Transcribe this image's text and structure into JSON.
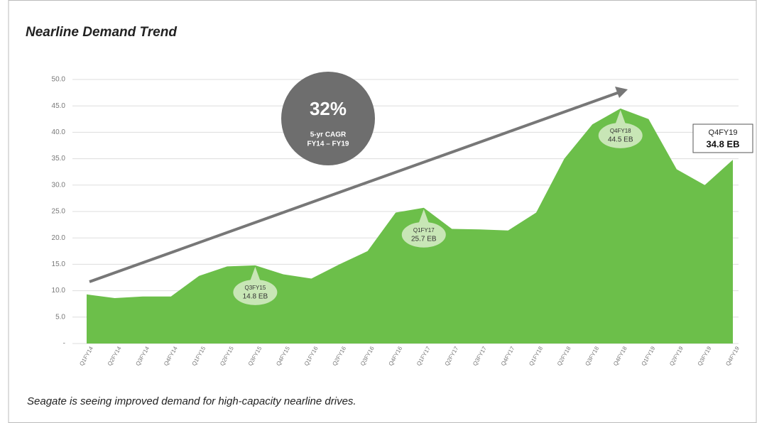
{
  "chart_data": {
    "type": "area",
    "title": "Nearline Demand Trend",
    "footnote": "Seagate is seeing improved demand for high-capacity nearline drives.",
    "categories": [
      "Q1FY14",
      "Q2FY14",
      "Q3FY14",
      "Q4FY14",
      "Q1FY15",
      "Q2FY15",
      "Q3FY15",
      "Q4FY15",
      "Q1FY16",
      "Q2FY16",
      "Q3FY16",
      "Q4FY16",
      "Q1FY17",
      "Q2FY17",
      "Q3FY17",
      "Q4FY17",
      "Q1FY18",
      "Q2FY18",
      "Q3FY18",
      "Q4FY18",
      "Q1FY19",
      "Q2FY19",
      "Q3FY19",
      "Q4FY19"
    ],
    "values": [
      9.3,
      8.6,
      8.9,
      8.9,
      12.8,
      14.6,
      14.8,
      13.1,
      12.3,
      15.0,
      17.5,
      24.8,
      25.7,
      21.7,
      21.6,
      21.4,
      24.8,
      35.0,
      41.5,
      44.5,
      42.5,
      33.0,
      30.0,
      34.8
    ],
    "value_labels": [
      null,
      null,
      null,
      null,
      null,
      null,
      "14.8 EB",
      null,
      null,
      null,
      null,
      null,
      "25.7 EB",
      null,
      null,
      null,
      null,
      null,
      null,
      "44.5 EB",
      null,
      null,
      null,
      "34.8 EB"
    ],
    "color": "#6cbf4a",
    "ylim": [
      0,
      50
    ],
    "yticks": [
      {
        "value": 0,
        "label": "-"
      },
      {
        "value": 5,
        "label": "5.0"
      },
      {
        "value": 10,
        "label": "10.0"
      },
      {
        "value": 15,
        "label": "15.0"
      },
      {
        "value": 20,
        "label": "20.0"
      },
      {
        "value": 25,
        "label": "25.0"
      },
      {
        "value": 30,
        "label": "30.0"
      },
      {
        "value": 35,
        "label": "35.0"
      },
      {
        "value": 40,
        "label": "40.0"
      },
      {
        "value": 45,
        "label": "45.0"
      },
      {
        "value": 50,
        "label": "50.0"
      }
    ],
    "grid": true,
    "badge": {
      "value": "32%",
      "line1": "5-yr CAGR",
      "line2": "FY14 – FY19"
    }
  }
}
